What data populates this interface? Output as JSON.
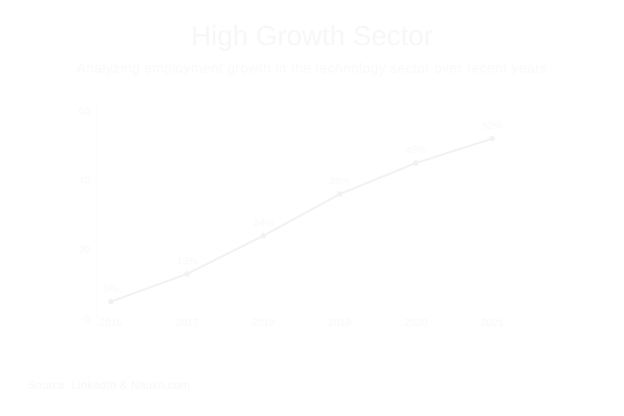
{
  "header": {
    "title": "High Growth Sector",
    "subtitle": "Analyzing employment growth in the technology sector over recent years"
  },
  "footer": {
    "source": "Source: LinkedIn & Naukri.com"
  },
  "colors": {
    "line": "#f2f2f2",
    "text": "#f8f8f8",
    "axis": "#fafafa"
  },
  "chart_data": {
    "type": "line",
    "title": "High Growth Sector",
    "subtitle": "Analyzing employment growth in the technology sector over recent years",
    "xlabel": "",
    "ylabel": "",
    "x": [
      "2016",
      "2017",
      "2018",
      "2019",
      "2020",
      "2021"
    ],
    "series": [
      {
        "values": [
          5,
          13,
          24,
          36,
          45,
          52
        ]
      }
    ],
    "data_labels": [
      "5%",
      "13%",
      "24%",
      "36%",
      "45%",
      "52%"
    ],
    "ylim": [
      0,
      60
    ],
    "yticks": [
      0,
      20,
      40,
      60
    ],
    "grid": false,
    "legend": "none"
  }
}
